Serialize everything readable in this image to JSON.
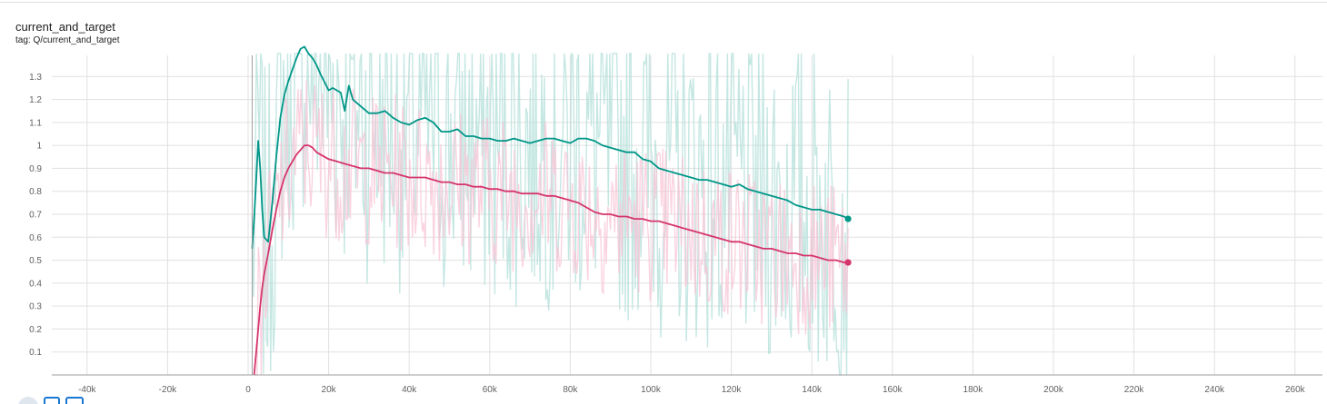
{
  "header": {
    "title": "current_and_target",
    "tag": "tag: Q/current_and_target"
  },
  "controls": {
    "icons": [
      "fit-domain-icon",
      "log-scale-icon",
      "download-icon"
    ]
  },
  "chart_data": {
    "type": "line",
    "title": "current_and_target",
    "xlabel": "",
    "ylabel": "",
    "xlim": [
      -50000,
      265000
    ],
    "ylim": [
      0,
      1.4
    ],
    "x_ticks": [
      "-40k",
      "-20k",
      "0",
      "20k",
      "40k",
      "60k",
      "80k",
      "100k",
      "120k",
      "140k",
      "160k",
      "180k",
      "200k",
      "220k",
      "240k",
      "260k"
    ],
    "y_ticks": [
      "0.1",
      "0.2",
      "0.3",
      "0.4",
      "0.5",
      "0.6",
      "0.7",
      "0.8",
      "0.9",
      "1",
      "1.1",
      "1.2",
      "1.3"
    ],
    "grid": true,
    "series": [
      {
        "color": "#009688",
        "raw_color": "#b2dfd8",
        "x": [
          1000,
          1500,
          2000,
          2500,
          3000,
          3500,
          4000,
          5000,
          6000,
          7000,
          8000,
          9000,
          10000,
          11000,
          12000,
          13000,
          14000,
          15000,
          16000,
          17000,
          18000,
          20000,
          21000,
          23000,
          24000,
          25000,
          26000,
          28000,
          30000,
          32000,
          34000,
          36000,
          38000,
          40000,
          42000,
          44000,
          46000,
          48000,
          50000,
          52000,
          54000,
          56000,
          58000,
          60000,
          62000,
          64000,
          66000,
          68000,
          70000,
          72000,
          74000,
          76000,
          78000,
          80000,
          82000,
          84000,
          86000,
          88000,
          90000,
          92000,
          94000,
          96000,
          98000,
          100000,
          102000,
          104000,
          106000,
          108000,
          110000,
          112000,
          114000,
          116000,
          118000,
          120000,
          122000,
          124000,
          126000,
          128000,
          130000,
          132000,
          134000,
          136000,
          138000,
          140000,
          142000,
          144000,
          146000,
          148000,
          149000
        ],
        "values": [
          0.55,
          0.68,
          0.85,
          1.02,
          0.9,
          0.72,
          0.6,
          0.58,
          0.75,
          0.95,
          1.12,
          1.22,
          1.28,
          1.33,
          1.38,
          1.42,
          1.43,
          1.4,
          1.38,
          1.35,
          1.31,
          1.24,
          1.25,
          1.23,
          1.15,
          1.26,
          1.2,
          1.17,
          1.14,
          1.14,
          1.15,
          1.12,
          1.1,
          1.09,
          1.11,
          1.12,
          1.1,
          1.06,
          1.06,
          1.07,
          1.04,
          1.04,
          1.03,
          1.03,
          1.02,
          1.02,
          1.03,
          1.02,
          1.01,
          1.02,
          1.03,
          1.03,
          1.02,
          1.01,
          1.03,
          1.03,
          1.02,
          1.0,
          0.99,
          0.98,
          0.97,
          0.97,
          0.94,
          0.93,
          0.9,
          0.89,
          0.88,
          0.87,
          0.86,
          0.85,
          0.85,
          0.84,
          0.83,
          0.82,
          0.83,
          0.81,
          0.8,
          0.79,
          0.78,
          0.77,
          0.76,
          0.74,
          0.73,
          0.72,
          0.72,
          0.71,
          0.7,
          0.69,
          0.68
        ]
      },
      {
        "color": "#d5356b",
        "raw_color": "#f8c4d6",
        "x": [
          1500,
          2000,
          2500,
          3000,
          3500,
          4000,
          5000,
          6000,
          7000,
          8000,
          9000,
          10000,
          11000,
          12000,
          13000,
          14000,
          15000,
          16000,
          17000,
          18000,
          20000,
          22000,
          24000,
          26000,
          28000,
          30000,
          32000,
          34000,
          36000,
          38000,
          40000,
          42000,
          44000,
          46000,
          48000,
          50000,
          52000,
          54000,
          56000,
          58000,
          60000,
          62000,
          64000,
          66000,
          68000,
          70000,
          72000,
          74000,
          76000,
          78000,
          80000,
          82000,
          84000,
          86000,
          88000,
          90000,
          92000,
          94000,
          96000,
          98000,
          100000,
          102000,
          104000,
          106000,
          108000,
          110000,
          112000,
          114000,
          116000,
          118000,
          120000,
          122000,
          124000,
          126000,
          128000,
          130000,
          132000,
          134000,
          136000,
          138000,
          140000,
          142000,
          144000,
          146000,
          148000,
          149000
        ],
        "values": [
          0.0,
          0.1,
          0.2,
          0.3,
          0.38,
          0.44,
          0.53,
          0.63,
          0.72,
          0.8,
          0.86,
          0.9,
          0.93,
          0.96,
          0.98,
          1.0,
          1.0,
          0.99,
          0.97,
          0.96,
          0.94,
          0.93,
          0.92,
          0.91,
          0.9,
          0.9,
          0.89,
          0.88,
          0.88,
          0.87,
          0.86,
          0.86,
          0.86,
          0.85,
          0.84,
          0.84,
          0.83,
          0.83,
          0.82,
          0.82,
          0.81,
          0.81,
          0.8,
          0.8,
          0.79,
          0.79,
          0.79,
          0.78,
          0.78,
          0.77,
          0.76,
          0.75,
          0.73,
          0.71,
          0.7,
          0.7,
          0.69,
          0.69,
          0.68,
          0.68,
          0.67,
          0.67,
          0.66,
          0.65,
          0.64,
          0.63,
          0.62,
          0.61,
          0.6,
          0.59,
          0.58,
          0.58,
          0.57,
          0.56,
          0.55,
          0.55,
          0.54,
          0.53,
          0.53,
          0.52,
          0.52,
          0.51,
          0.5,
          0.5,
          0.49,
          0.49
        ]
      }
    ]
  }
}
